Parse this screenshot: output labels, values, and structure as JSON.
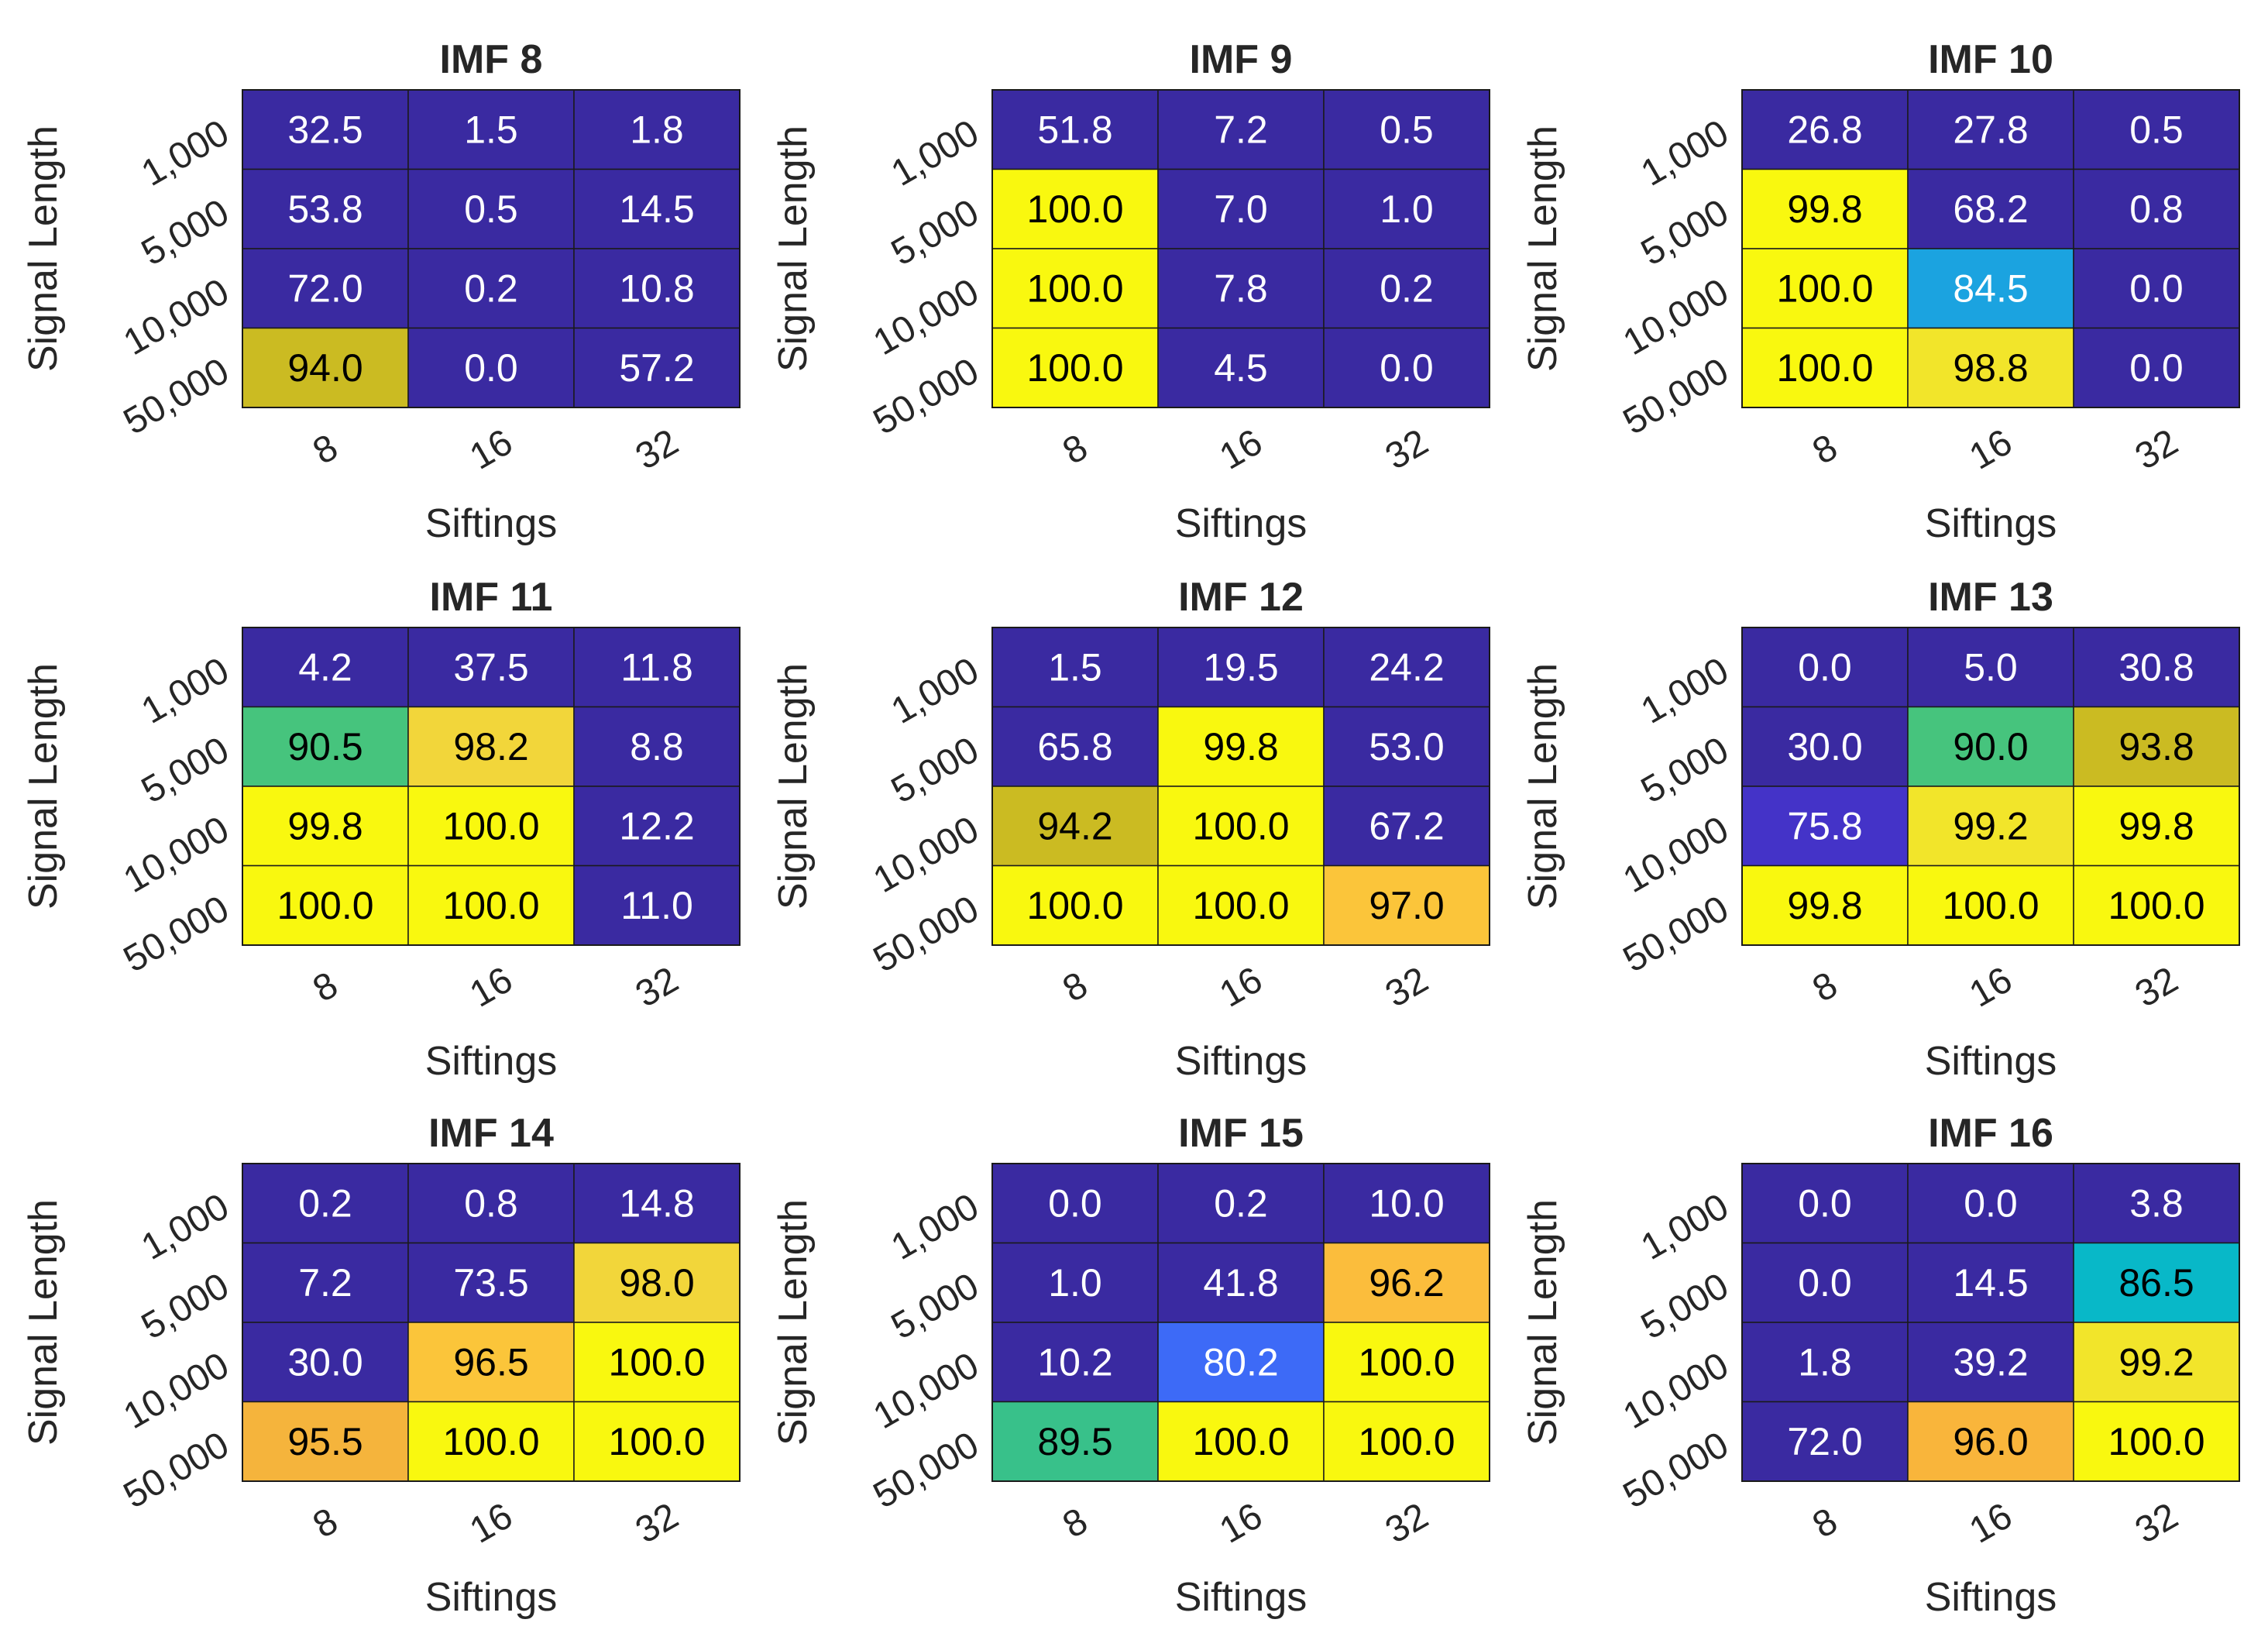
{
  "chart_data": [
    {
      "type": "heatmap",
      "title": "IMF 8",
      "xlabel": "Siftings",
      "ylabel": "Signal Length",
      "x": [
        "8",
        "16",
        "32"
      ],
      "y": [
        "1,000",
        "5,000",
        "10,000",
        "50,000"
      ],
      "values": [
        [
          32.5,
          1.5,
          1.8
        ],
        [
          53.8,
          0.5,
          14.5
        ],
        [
          72.0,
          0.2,
          10.8
        ],
        [
          94.0,
          0.0,
          57.2
        ]
      ],
      "labels": [
        [
          "32.5",
          "1.5",
          "1.8"
        ],
        [
          "53.8",
          "0.5",
          "14.5"
        ],
        [
          "72.0",
          "0.2",
          "10.8"
        ],
        [
          "94.0",
          "0.0",
          "57.2"
        ]
      ],
      "colors": [
        [
          "#3a2aa1",
          "#3a2aa1",
          "#3a2aa1"
        ],
        [
          "#3a2aa1",
          "#3a2aa1",
          "#3a2aa1"
        ],
        [
          "#3a2aa1",
          "#3a2aa1",
          "#3a2aa1"
        ],
        [
          "#cbbb22",
          "#3a2aa1",
          "#3a2aa1"
        ]
      ]
    },
    {
      "type": "heatmap",
      "title": "IMF 9",
      "xlabel": "Siftings",
      "ylabel": "Signal Length",
      "x": [
        "8",
        "16",
        "32"
      ],
      "y": [
        "1,000",
        "5,000",
        "10,000",
        "50,000"
      ],
      "values": [
        [
          51.8,
          7.2,
          0.5
        ],
        [
          100.0,
          7.0,
          1.0
        ],
        [
          100.0,
          7.8,
          0.2
        ],
        [
          100.0,
          4.5,
          0.0
        ]
      ],
      "labels": [
        [
          "51.8",
          "7.2",
          "0.5"
        ],
        [
          "100.0",
          "7.0",
          "1.0"
        ],
        [
          "100.0",
          "7.8",
          "0.2"
        ],
        [
          "100.0",
          "4.5",
          "0.0"
        ]
      ],
      "colors": [
        [
          "#3a2aa1",
          "#3a2aa1",
          "#3a2aa1"
        ],
        [
          "#f9f80f",
          "#3a2aa1",
          "#3a2aa1"
        ],
        [
          "#f9f80f",
          "#3a2aa1",
          "#3a2aa1"
        ],
        [
          "#f9f80f",
          "#3a2aa1",
          "#3a2aa1"
        ]
      ]
    },
    {
      "type": "heatmap",
      "title": "IMF 10",
      "xlabel": "Siftings",
      "ylabel": "Signal Length",
      "x": [
        "8",
        "16",
        "32"
      ],
      "y": [
        "1,000",
        "5,000",
        "10,000",
        "50,000"
      ],
      "values": [
        [
          26.8,
          27.8,
          0.5
        ],
        [
          99.8,
          68.2,
          0.8
        ],
        [
          100.0,
          84.5,
          0.0
        ],
        [
          100.0,
          98.8,
          0.0
        ]
      ],
      "labels": [
        [
          "26.8",
          "27.8",
          "0.5"
        ],
        [
          "99.8",
          "68.2",
          "0.8"
        ],
        [
          "100.0",
          "84.5",
          "0.0"
        ],
        [
          "100.0",
          "98.8",
          "0.0"
        ]
      ],
      "colors": [
        [
          "#3a2aa1",
          "#3a2aa1",
          "#3a2aa1"
        ],
        [
          "#f9f80f",
          "#3a2aa1",
          "#3a2aa1"
        ],
        [
          "#f9f80f",
          "#1ba3e0",
          "#3a2aa1"
        ],
        [
          "#f9f80f",
          "#f2e52a",
          "#3a2aa1"
        ]
      ]
    },
    {
      "type": "heatmap",
      "title": "IMF 11",
      "xlabel": "Siftings",
      "ylabel": "Signal Length",
      "x": [
        "8",
        "16",
        "32"
      ],
      "y": [
        "1,000",
        "5,000",
        "10,000",
        "50,000"
      ],
      "values": [
        [
          4.2,
          37.5,
          11.8
        ],
        [
          90.5,
          98.2,
          8.8
        ],
        [
          99.8,
          100.0,
          12.2
        ],
        [
          100.0,
          100.0,
          11.0
        ]
      ],
      "labels": [
        [
          "4.2",
          "37.5",
          "11.8"
        ],
        [
          "90.5",
          "98.2",
          "8.8"
        ],
        [
          "99.8",
          "100.0",
          "12.2"
        ],
        [
          "100.0",
          "100.0",
          "11.0"
        ]
      ],
      "colors": [
        [
          "#3a2aa1",
          "#3a2aa1",
          "#3a2aa1"
        ],
        [
          "#46c47d",
          "#f2d63a",
          "#3a2aa1"
        ],
        [
          "#f9f80f",
          "#f9f80f",
          "#3a2aa1"
        ],
        [
          "#f9f80f",
          "#f9f80f",
          "#3a2aa1"
        ]
      ]
    },
    {
      "type": "heatmap",
      "title": "IMF 12",
      "xlabel": "Siftings",
      "ylabel": "Signal Length",
      "x": [
        "8",
        "16",
        "32"
      ],
      "y": [
        "1,000",
        "5,000",
        "10,000",
        "50,000"
      ],
      "values": [
        [
          1.5,
          19.5,
          24.2
        ],
        [
          65.8,
          99.8,
          53.0
        ],
        [
          94.2,
          100.0,
          67.2
        ],
        [
          100.0,
          100.0,
          97.0
        ]
      ],
      "labels": [
        [
          "1.5",
          "19.5",
          "24.2"
        ],
        [
          "65.8",
          "99.8",
          "53.0"
        ],
        [
          "94.2",
          "100.0",
          "67.2"
        ],
        [
          "100.0",
          "100.0",
          "97.0"
        ]
      ],
      "colors": [
        [
          "#3a2aa1",
          "#3a2aa1",
          "#3a2aa1"
        ],
        [
          "#3a2aa1",
          "#f9f80f",
          "#3a2aa1"
        ],
        [
          "#cbbb22",
          "#f9f80f",
          "#3a2aa1"
        ],
        [
          "#f9f80f",
          "#f9f80f",
          "#fbc53a"
        ]
      ]
    },
    {
      "type": "heatmap",
      "title": "IMF 13",
      "xlabel": "Siftings",
      "ylabel": "Signal Length",
      "x": [
        "8",
        "16",
        "32"
      ],
      "y": [
        "1,000",
        "5,000",
        "10,000",
        "50,000"
      ],
      "values": [
        [
          0.0,
          5.0,
          30.8
        ],
        [
          30.0,
          90.0,
          93.8
        ],
        [
          75.8,
          99.2,
          99.8
        ],
        [
          99.8,
          100.0,
          100.0
        ]
      ],
      "labels": [
        [
          "0.0",
          "5.0",
          "30.8"
        ],
        [
          "30.0",
          "90.0",
          "93.8"
        ],
        [
          "75.8",
          "99.2",
          "99.8"
        ],
        [
          "99.8",
          "100.0",
          "100.0"
        ]
      ],
      "colors": [
        [
          "#3a2aa1",
          "#3a2aa1",
          "#3a2aa1"
        ],
        [
          "#3a2aa1",
          "#46c47d",
          "#cbbb22"
        ],
        [
          "#4433c8",
          "#f2e52a",
          "#f9f80f"
        ],
        [
          "#f9f80f",
          "#f9f80f",
          "#f9f80f"
        ]
      ]
    },
    {
      "type": "heatmap",
      "title": "IMF 14",
      "xlabel": "Siftings",
      "ylabel": "Signal Length",
      "x": [
        "8",
        "16",
        "32"
      ],
      "y": [
        "1,000",
        "5,000",
        "10,000",
        "50,000"
      ],
      "values": [
        [
          0.2,
          0.8,
          14.8
        ],
        [
          7.2,
          73.5,
          98.0
        ],
        [
          30.0,
          96.5,
          100.0
        ],
        [
          95.5,
          100.0,
          100.0
        ]
      ],
      "labels": [
        [
          "0.2",
          "0.8",
          "14.8"
        ],
        [
          "7.2",
          "73.5",
          "98.0"
        ],
        [
          "30.0",
          "96.5",
          "100.0"
        ],
        [
          "95.5",
          "100.0",
          "100.0"
        ]
      ],
      "colors": [
        [
          "#3a2aa1",
          "#3a2aa1",
          "#3a2aa1"
        ],
        [
          "#3a2aa1",
          "#3a2aa1",
          "#f2d63a"
        ],
        [
          "#3a2aa1",
          "#fbc53a",
          "#f9f80f"
        ],
        [
          "#f5b43c",
          "#f9f80f",
          "#f9f80f"
        ]
      ]
    },
    {
      "type": "heatmap",
      "title": "IMF 15",
      "xlabel": "Siftings",
      "ylabel": "Signal Length",
      "x": [
        "8",
        "16",
        "32"
      ],
      "y": [
        "1,000",
        "5,000",
        "10,000",
        "50,000"
      ],
      "values": [
        [
          0.0,
          0.2,
          10.0
        ],
        [
          1.0,
          41.8,
          96.2
        ],
        [
          10.2,
          80.2,
          100.0
        ],
        [
          89.5,
          100.0,
          100.0
        ]
      ],
      "labels": [
        [
          "0.0",
          "0.2",
          "10.0"
        ],
        [
          "1.0",
          "41.8",
          "96.2"
        ],
        [
          "10.2",
          "80.2",
          "100.0"
        ],
        [
          "89.5",
          "100.0",
          "100.0"
        ]
      ],
      "colors": [
        [
          "#3a2aa1",
          "#3a2aa1",
          "#3a2aa1"
        ],
        [
          "#3a2aa1",
          "#3a2aa1",
          "#fbbd3c"
        ],
        [
          "#3a2aa1",
          "#3d6af7",
          "#f9f80f"
        ],
        [
          "#38c18a",
          "#f9f80f",
          "#f9f80f"
        ]
      ]
    },
    {
      "type": "heatmap",
      "title": "IMF 16",
      "xlabel": "Siftings",
      "ylabel": "Signal Length",
      "x": [
        "8",
        "16",
        "32"
      ],
      "y": [
        "1,000",
        "5,000",
        "10,000",
        "50,000"
      ],
      "values": [
        [
          0.0,
          0.0,
          3.8
        ],
        [
          0.0,
          14.5,
          86.5
        ],
        [
          1.8,
          39.2,
          99.2
        ],
        [
          72.0,
          96.0,
          100.0
        ]
      ],
      "labels": [
        [
          "0.0",
          "0.0",
          "3.8"
        ],
        [
          "0.0",
          "14.5",
          "86.5"
        ],
        [
          "1.8",
          "39.2",
          "99.2"
        ],
        [
          "72.0",
          "96.0",
          "100.0"
        ]
      ],
      "colors": [
        [
          "#3a2aa1",
          "#3a2aa1",
          "#3a2aa1"
        ],
        [
          "#3a2aa1",
          "#3a2aa1",
          "#08b8c8"
        ],
        [
          "#3a2aa1",
          "#3a2aa1",
          "#f2e52a"
        ],
        [
          "#3a2aa1",
          "#f9b53b",
          "#f9f80f"
        ]
      ]
    }
  ]
}
